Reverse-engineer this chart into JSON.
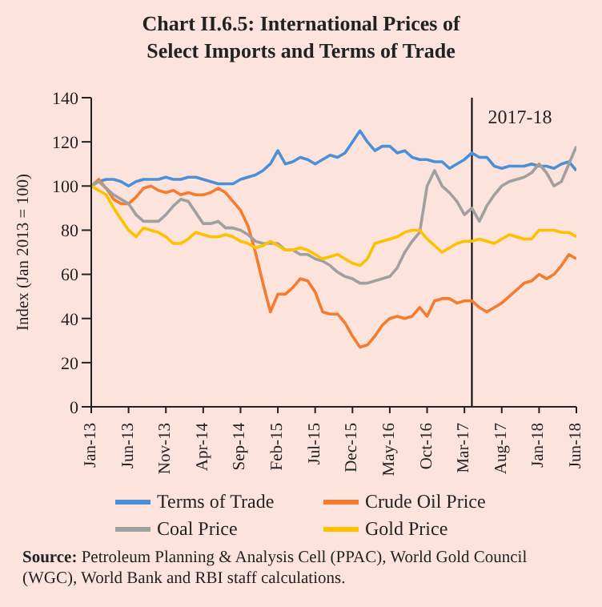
{
  "chart_data": {
    "type": "line",
    "title": "Chart II.6.5: International Prices of Select Imports and Terms of Trade",
    "ylabel": "Index (Jan 2013 = 100)",
    "x": [
      "2013-01",
      "2013-02",
      "2013-03",
      "2013-04",
      "2013-05",
      "2013-06",
      "2013-07",
      "2013-08",
      "2013-09",
      "2013-10",
      "2013-11",
      "2013-12",
      "2014-01",
      "2014-02",
      "2014-03",
      "2014-04",
      "2014-05",
      "2014-06",
      "2014-07",
      "2014-08",
      "2014-09",
      "2014-10",
      "2014-11",
      "2014-12",
      "2015-01",
      "2015-02",
      "2015-03",
      "2015-04",
      "2015-05",
      "2015-06",
      "2015-07",
      "2015-08",
      "2015-09",
      "2015-10",
      "2015-11",
      "2015-12",
      "2016-01",
      "2016-02",
      "2016-03",
      "2016-04",
      "2016-05",
      "2016-06",
      "2016-07",
      "2016-08",
      "2016-09",
      "2016-10",
      "2016-11",
      "2016-12",
      "2017-01",
      "2017-02",
      "2017-03",
      "2017-04",
      "2017-05",
      "2017-06",
      "2017-07",
      "2017-08",
      "2017-09",
      "2017-10",
      "2017-11",
      "2017-12",
      "2018-01",
      "2018-02",
      "2018-03",
      "2018-04",
      "2018-05",
      "2018-06"
    ],
    "series": [
      {
        "name": "Terms of Trade",
        "color": "#4a90d9",
        "values": [
          100,
          102,
          103,
          103,
          102,
          100,
          102,
          103,
          103,
          103,
          104,
          103,
          103,
          104,
          104,
          103,
          102,
          101,
          101,
          101,
          103,
          104,
          105,
          107,
          110,
          116,
          110,
          111,
          113,
          112,
          110,
          112,
          114,
          113,
          115,
          120,
          125,
          120,
          116,
          118,
          118,
          115,
          116,
          113,
          112,
          112,
          111,
          111,
          108,
          110,
          112,
          115,
          113,
          113,
          109,
          108,
          109,
          109,
          109,
          110,
          109,
          109,
          108,
          110,
          111,
          107
        ]
      },
      {
        "name": "Crude Oil Price",
        "color": "#f47c30",
        "values": [
          100,
          103,
          99,
          94,
          92,
          92,
          95,
          99,
          100,
          98,
          97,
          98,
          96,
          97,
          96,
          96,
          97,
          99,
          97,
          93,
          89,
          82,
          70,
          56,
          43,
          51,
          51,
          54,
          58,
          57,
          52,
          43,
          42,
          42,
          38,
          32,
          27,
          28,
          32,
          37,
          40,
          41,
          40,
          41,
          45,
          41,
          48,
          49,
          49,
          47,
          48,
          48,
          45,
          43,
          45,
          47,
          50,
          53,
          56,
          57,
          60,
          58,
          60,
          64,
          69,
          67
        ]
      },
      {
        "name": "Coal Price",
        "color": "#a0a0a0",
        "values": [
          100,
          102,
          99,
          96,
          94,
          92,
          87,
          84,
          84,
          84,
          87,
          91,
          94,
          93,
          88,
          83,
          83,
          84,
          81,
          81,
          80,
          78,
          75,
          74,
          74,
          74,
          71,
          71,
          69,
          69,
          67,
          66,
          64,
          61,
          59,
          58,
          56,
          56,
          57,
          58,
          59,
          63,
          70,
          75,
          79,
          100,
          107,
          100,
          97,
          93,
          87,
          90,
          84,
          91,
          96,
          100,
          102,
          103,
          104,
          106,
          110,
          106,
          100,
          102,
          110,
          118
        ]
      },
      {
        "name": "Gold Price",
        "color": "#ffc000",
        "values": [
          100,
          98,
          96,
          90,
          85,
          80,
          77,
          81,
          80,
          79,
          77,
          74,
          74,
          76,
          79,
          78,
          77,
          77,
          78,
          77,
          75,
          74,
          72,
          73,
          75,
          73,
          71,
          71,
          72,
          71,
          69,
          67,
          68,
          69,
          67,
          65,
          64,
          67,
          74,
          75,
          76,
          77,
          79,
          80,
          80,
          76,
          73,
          70,
          72,
          74,
          75,
          75,
          76,
          75,
          74,
          76,
          78,
          77,
          76,
          76,
          80,
          80,
          80,
          79,
          79,
          77
        ]
      }
    ],
    "xlim": [
      "2013-01",
      "2018-06"
    ],
    "xticks": [
      {
        "value": "2013-01",
        "label": "Jan-13"
      },
      {
        "value": "2013-06",
        "label": "Jun-13"
      },
      {
        "value": "2013-11",
        "label": "Nov-13"
      },
      {
        "value": "2014-04",
        "label": "Apr-14"
      },
      {
        "value": "2014-09",
        "label": "Sep-14"
      },
      {
        "value": "2015-02",
        "label": "Feb-15"
      },
      {
        "value": "2015-07",
        "label": "Jul-15"
      },
      {
        "value": "2015-12",
        "label": "Dec-15"
      },
      {
        "value": "2016-05",
        "label": "May-16"
      },
      {
        "value": "2016-10",
        "label": "Oct-16"
      },
      {
        "value": "2017-03",
        "label": "Mar-17"
      },
      {
        "value": "2017-08",
        "label": "Aug-17"
      },
      {
        "value": "2018-01",
        "label": "Jan-18"
      },
      {
        "value": "2018-06",
        "label": "Jun-18"
      }
    ],
    "ylim": [
      0,
      140
    ],
    "yticks": [
      0,
      20,
      40,
      60,
      80,
      100,
      120,
      140
    ],
    "ref_lines": [
      {
        "axis": "x",
        "value": "2017-04",
        "label": "2017-18",
        "color": "#000000"
      }
    ],
    "legend": "bottom",
    "marker": "none",
    "line_style": "solid",
    "annotations": [
      "Source: Petroleum Planning & Analysis Cell (PPAC), World Gold Council (WGC), World Bank and RBI staff calculations."
    ]
  }
}
